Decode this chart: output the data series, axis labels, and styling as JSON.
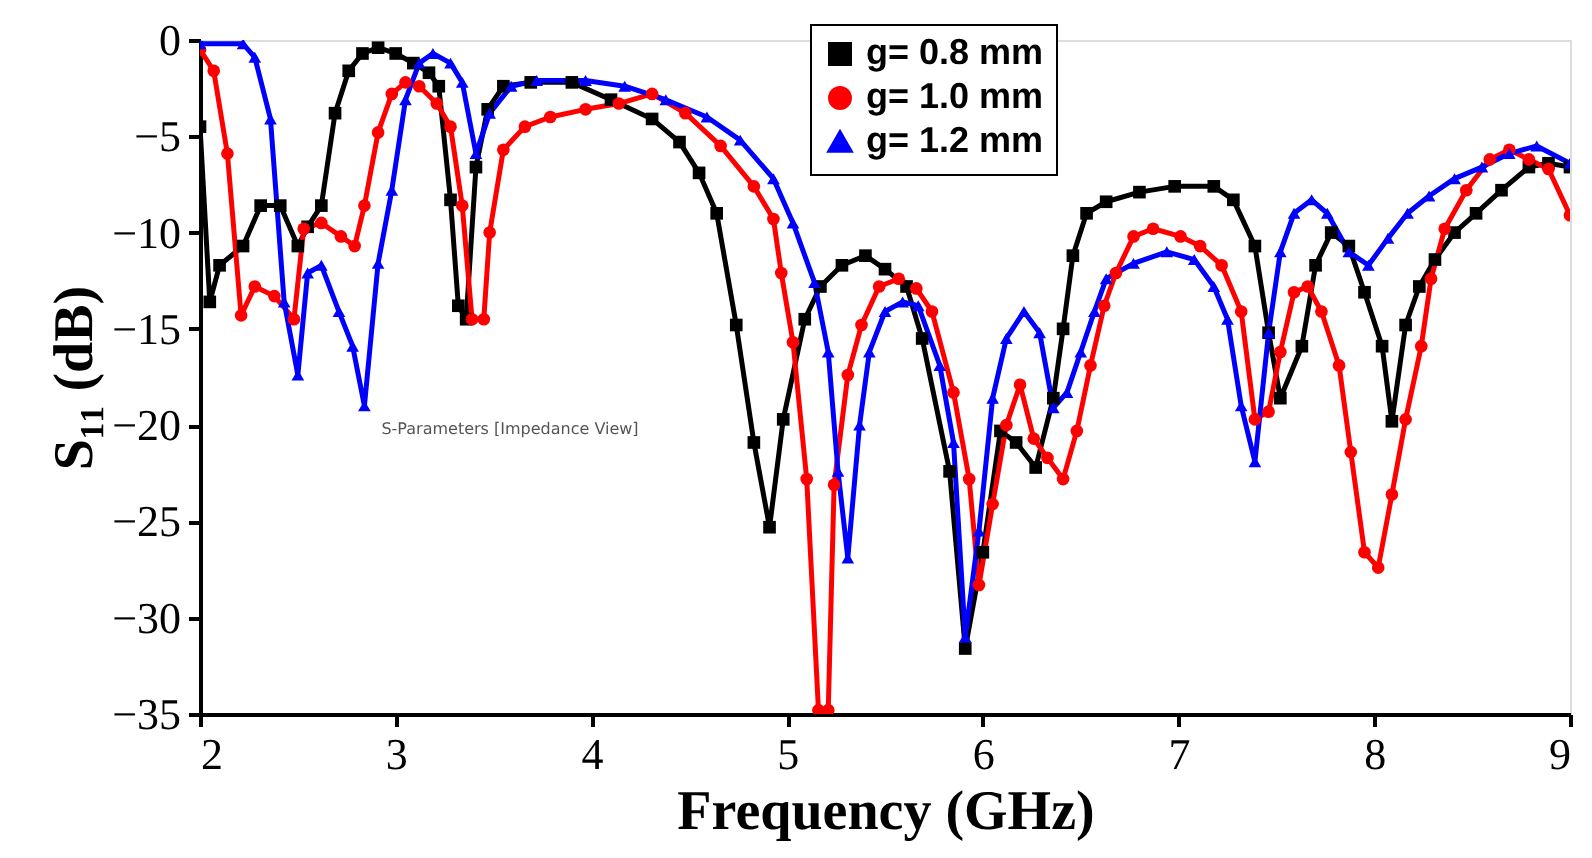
{
  "chart_data": {
    "type": "line",
    "xlabel": "Frequency (GHz)",
    "ylabel": "S₁₁ (dB)",
    "xlim": [
      2,
      9
    ],
    "xticks": [
      2,
      3,
      4,
      5,
      6,
      7,
      8,
      9
    ],
    "ylim": [
      -35,
      0
    ],
    "yticks": [
      -35,
      -30,
      -25,
      -20,
      -15,
      -10,
      -5,
      0
    ],
    "grid": false,
    "legend": "top right",
    "line_style": "solid",
    "annotations": [
      "S-Parameters [Impedance View]"
    ],
    "series": [
      {
        "name": "g= 0.8 mm",
        "color": "#000000",
        "marker": "square",
        "x": [
          2.0,
          2.05,
          2.1,
          2.22,
          2.31,
          2.41,
          2.5,
          2.55,
          2.62,
          2.69,
          2.76,
          2.83,
          2.91,
          3.0,
          3.09,
          3.17,
          3.22,
          3.28,
          3.32,
          3.36,
          3.41,
          3.47,
          3.55,
          3.69,
          3.9,
          4.1,
          4.31,
          4.45,
          4.55,
          4.64,
          4.74,
          4.83,
          4.91,
          4.98,
          5.09,
          5.17,
          5.28,
          5.4,
          5.5,
          5.61,
          5.69,
          5.83,
          5.91,
          6.0,
          6.09,
          6.17,
          6.27,
          6.36,
          6.41,
          6.46,
          6.53,
          6.63,
          6.8,
          6.98,
          7.18,
          7.28,
          7.39,
          7.46,
          7.52,
          7.63,
          7.7,
          7.78,
          7.87,
          7.95,
          8.04,
          8.09,
          8.16,
          8.23,
          8.31,
          8.41,
          8.52,
          8.65,
          8.79,
          8.89,
          9.0
        ],
        "values": [
          -4.5,
          -13.6,
          -11.7,
          -10.7,
          -8.6,
          -8.6,
          -10.7,
          -9.7,
          -8.6,
          -3.8,
          -1.6,
          -0.7,
          -0.4,
          -0.7,
          -1.2,
          -1.7,
          -2.4,
          -8.3,
          -13.8,
          -14.5,
          -6.6,
          -3.6,
          -2.4,
          -2.2,
          -2.2,
          -3.1,
          -4.1,
          -5.3,
          -6.9,
          -9.0,
          -14.8,
          -20.9,
          -25.3,
          -19.7,
          -14.5,
          -12.8,
          -11.7,
          -11.2,
          -11.9,
          -12.8,
          -15.5,
          -22.4,
          -31.6,
          -26.6,
          -20.3,
          -20.9,
          -22.2,
          -18.6,
          -15.0,
          -11.2,
          -9.0,
          -8.4,
          -7.9,
          -7.6,
          -7.6,
          -8.3,
          -10.7,
          -15.2,
          -18.6,
          -15.9,
          -11.7,
          -10.0,
          -10.7,
          -13.1,
          -15.9,
          -19.8,
          -14.8,
          -12.8,
          -11.4,
          -10.0,
          -9.0,
          -7.8,
          -6.6,
          -6.4,
          -6.6
        ]
      },
      {
        "name": "g= 1.0 mm",
        "color": "#ff0000",
        "marker": "circle",
        "x": [
          2.0,
          2.07,
          2.14,
          2.21,
          2.28,
          2.38,
          2.48,
          2.53,
          2.62,
          2.72,
          2.79,
          2.84,
          2.91,
          2.98,
          3.05,
          3.12,
          3.21,
          3.28,
          3.34,
          3.39,
          3.45,
          3.48,
          3.55,
          3.66,
          3.79,
          3.97,
          4.14,
          4.31,
          4.48,
          4.66,
          4.83,
          4.93,
          4.97,
          5.03,
          5.1,
          5.16,
          5.21,
          5.24,
          5.31,
          5.38,
          5.47,
          5.57,
          5.66,
          5.74,
          5.85,
          5.93,
          5.98,
          6.05,
          6.12,
          6.19,
          6.26,
          6.33,
          6.41,
          6.48,
          6.55,
          6.62,
          6.68,
          6.77,
          6.87,
          7.01,
          7.11,
          7.22,
          7.32,
          7.39,
          7.46,
          7.52,
          7.59,
          7.66,
          7.73,
          7.82,
          7.88,
          7.95,
          8.02,
          8.09,
          8.16,
          8.24,
          8.29,
          8.36,
          8.47,
          8.59,
          8.69,
          8.79,
          8.89,
          9.0
        ],
        "values": [
          -0.5,
          -1.6,
          -5.9,
          -14.3,
          -12.8,
          -13.3,
          -14.5,
          -9.8,
          -9.5,
          -10.2,
          -10.7,
          -8.6,
          -4.8,
          -2.8,
          -2.2,
          -2.4,
          -3.3,
          -4.5,
          -8.6,
          -14.5,
          -14.5,
          -10.0,
          -5.7,
          -4.5,
          -4.0,
          -3.6,
          -3.3,
          -2.8,
          -3.8,
          -5.5,
          -7.6,
          -9.3,
          -12.1,
          -15.7,
          -22.8,
          -34.8,
          -34.8,
          -23.1,
          -17.4,
          -14.8,
          -12.8,
          -12.4,
          -12.9,
          -14.1,
          -18.3,
          -22.8,
          -28.3,
          -24.1,
          -20.0,
          -17.9,
          -20.7,
          -21.7,
          -22.8,
          -20.3,
          -16.9,
          -13.8,
          -12.1,
          -10.2,
          -9.8,
          -10.2,
          -10.7,
          -11.7,
          -14.1,
          -19.7,
          -19.3,
          -16.2,
          -13.1,
          -12.8,
          -14.1,
          -16.9,
          -21.4,
          -26.6,
          -27.4,
          -23.6,
          -19.7,
          -15.9,
          -12.4,
          -9.8,
          -7.8,
          -6.2,
          -5.7,
          -6.2,
          -6.7,
          -9.1
        ]
      },
      {
        "name": "g= 1.2 mm",
        "color": "#0000ff",
        "marker": "triangle",
        "x": [
          2.0,
          2.22,
          2.28,
          2.36,
          2.43,
          2.5,
          2.55,
          2.62,
          2.71,
          2.78,
          2.84,
          2.91,
          2.98,
          3.05,
          3.12,
          3.19,
          3.28,
          3.34,
          3.41,
          3.48,
          3.59,
          3.72,
          3.97,
          4.17,
          4.38,
          4.59,
          4.76,
          4.93,
          5.03,
          5.14,
          5.21,
          5.26,
          5.31,
          5.37,
          5.42,
          5.5,
          5.59,
          5.67,
          5.78,
          5.85,
          5.91,
          5.98,
          6.05,
          6.12,
          6.21,
          6.29,
          6.36,
          6.43,
          6.5,
          6.57,
          6.63,
          6.77,
          6.94,
          7.08,
          7.18,
          7.25,
          7.32,
          7.39,
          7.46,
          7.52,
          7.59,
          7.68,
          7.76,
          7.87,
          7.97,
          8.07,
          8.17,
          8.28,
          8.41,
          8.55,
          8.69,
          8.83,
          9.0
        ],
        "values": [
          -0.2,
          -0.2,
          -0.9,
          -4.1,
          -13.6,
          -17.4,
          -12.1,
          -11.7,
          -14.1,
          -15.9,
          -19.0,
          -11.6,
          -7.8,
          -3.1,
          -1.2,
          -0.7,
          -1.2,
          -2.2,
          -5.9,
          -3.8,
          -2.4,
          -2.1,
          -2.1,
          -2.4,
          -3.1,
          -4.0,
          -5.2,
          -7.2,
          -9.5,
          -12.6,
          -16.2,
          -22.4,
          -26.9,
          -20.0,
          -16.2,
          -14.1,
          -13.6,
          -13.8,
          -16.9,
          -20.9,
          -31.0,
          -25.5,
          -18.6,
          -15.5,
          -14.1,
          -15.2,
          -19.1,
          -18.3,
          -16.2,
          -14.1,
          -12.4,
          -11.6,
          -11.0,
          -11.4,
          -12.8,
          -14.5,
          -19.0,
          -21.9,
          -15.2,
          -11.0,
          -9.0,
          -8.3,
          -9.0,
          -11.0,
          -11.7,
          -10.3,
          -9.0,
          -8.1,
          -7.2,
          -6.6,
          -5.9,
          -5.5,
          -6.4
        ]
      }
    ]
  }
}
